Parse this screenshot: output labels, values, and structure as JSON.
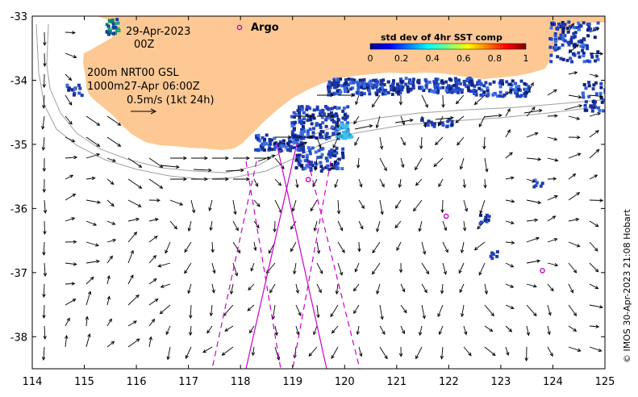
{
  "map": {
    "x_ticks": [
      "114",
      "115",
      "116",
      "117",
      "118",
      "119",
      "120",
      "121",
      "122",
      "123",
      "124",
      "125"
    ],
    "y_ticks": [
      "-33",
      "-34",
      "-35",
      "-36",
      "-37",
      "-38"
    ],
    "lon_range": [
      114,
      125
    ],
    "lat_range": [
      -38.5,
      -33
    ],
    "colors": {
      "land": "#fdc894",
      "ocean": "#ffffff",
      "arrow": "#000000",
      "track": "#cc00cc",
      "contour": "#a0a0a0",
      "sst_dense": "#1c3ca8"
    }
  },
  "labels": {
    "date": "29-Apr-2023",
    "hour": "00Z",
    "depth_200": "200m  NRT00 GSL",
    "depth_1000": "1000m27-Apr 06:00Z",
    "scale": "0.5m/s (1kt 24h)",
    "argo": "Argo",
    "credit": "© IMOS 30-Apr-2023 21:08 Hobart"
  },
  "colorbar": {
    "title": "std dev of 4hr SST comp",
    "ticks": [
      "0",
      "0.2",
      "0.4",
      "0.6",
      "0.8",
      "1"
    ]
  },
  "argo_floats": [
    {
      "lon": 119.3,
      "lat": -35.55
    },
    {
      "lon": 121.95,
      "lat": -36.12
    },
    {
      "lon": 123.8,
      "lat": -36.97
    }
  ]
}
